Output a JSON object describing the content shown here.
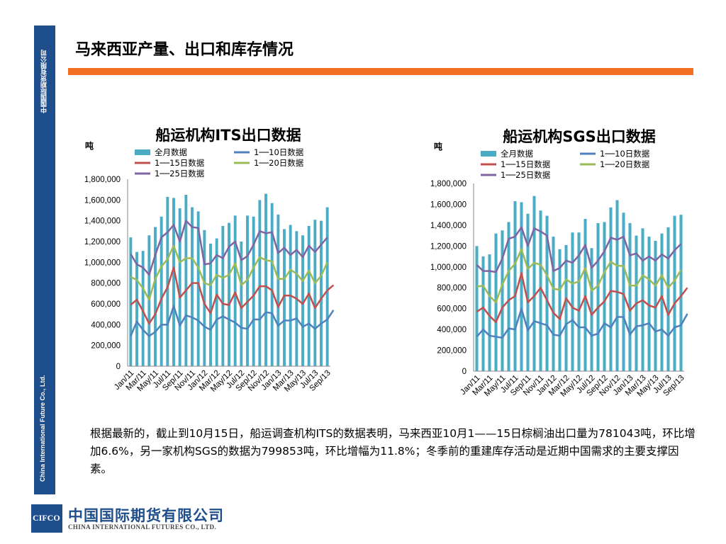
{
  "page": {
    "title": "马来西亚产量、出口和库存情况",
    "sidebar_top": "中国国际期货有限公司",
    "sidebar_bottom": "China International Future Co., Ltd.",
    "paragraph": "根据最新的，截止到10月15日，船运调查机构ITS的数据表明，马来西亚10月1——15日棕榈油出口量为781043吨，环比增加6.6%，另一家机构SGS的数据为799853吨，环比增幅为11.8%；冬季前的重建库存活动是近期中国需求的主要支撑因素。",
    "footer_logo_text": "CIFCO",
    "footer_cn": "中国国际期货有限公司",
    "footer_en": "CHINA INTERNATIONAL FUTURES CO., LTD."
  },
  "colors": {
    "bar": "#4bacc6",
    "s10": "#4f81bd",
    "s15": "#c0504d",
    "s20": "#9bbb59",
    "s25": "#8064a2",
    "sidebar": "#1f4e8c",
    "rule": "#f26f21"
  },
  "chart_data": [
    {
      "type": "bar",
      "title": "船运机构ITS出口数据",
      "ylabel": "吨",
      "ylim": [
        0,
        1800000
      ],
      "yticks": [
        "0",
        "200,000",
        "400,000",
        "600,000",
        "800,000",
        "1,000,000",
        "1,200,000",
        "1,400,000",
        "1,600,000",
        "1,800,000"
      ],
      "xtick_labels": [
        "Jan/11",
        "Mar/11",
        "May/11",
        "Jul/11",
        "Sep/11",
        "Nov/11",
        "Jan/12",
        "Mar/12",
        "May/12",
        "Jul/12",
        "Sep/12",
        "Nov/12",
        "Jan/13",
        "Mar/13",
        "May/13",
        "Jul/13",
        "Sep/13"
      ],
      "legend": [
        "全月数据",
        "1──10日数据",
        "1──15日数据",
        "1──20日数据",
        "1──25日数据"
      ],
      "series": [
        {
          "name": "全月数据",
          "type": "bar",
          "values": [
            1240000,
            1100000,
            1110000,
            1260000,
            1340000,
            1440000,
            1630000,
            1620000,
            1520000,
            1650000,
            1530000,
            1490000,
            1310000,
            1180000,
            1230000,
            1350000,
            1380000,
            1450000,
            1200000,
            1450000,
            1440000,
            1600000,
            1660000,
            1570000,
            1460000,
            1320000,
            1360000,
            1300000,
            1260000,
            1350000,
            1410000,
            1400000,
            1530000
          ]
        },
        {
          "name": "1──10日数据",
          "type": "line",
          "values": [
            290000,
            430000,
            350000,
            290000,
            330000,
            400000,
            400000,
            580000,
            390000,
            490000,
            470000,
            440000,
            380000,
            350000,
            450000,
            480000,
            450000,
            420000,
            370000,
            360000,
            450000,
            450000,
            520000,
            510000,
            390000,
            440000,
            440000,
            460000,
            380000,
            410000,
            360000,
            410000,
            450000,
            540000
          ]
        },
        {
          "name": "1──15日数据",
          "type": "line",
          "values": [
            590000,
            640000,
            530000,
            410000,
            500000,
            650000,
            760000,
            950000,
            660000,
            730000,
            800000,
            800000,
            600000,
            510000,
            690000,
            600000,
            590000,
            710000,
            560000,
            620000,
            680000,
            770000,
            770000,
            730000,
            570000,
            680000,
            680000,
            650000,
            600000,
            700000,
            560000,
            650000,
            730000,
            780000
          ]
        },
        {
          "name": "1──20日数据",
          "type": "line",
          "values": [
            860000,
            830000,
            750000,
            640000,
            840000,
            960000,
            1030000,
            1160000,
            1000000,
            1040000,
            1040000,
            950000,
            800000,
            780000,
            880000,
            850000,
            880000,
            990000,
            780000,
            830000,
            950000,
            1050000,
            1020000,
            1010000,
            840000,
            840000,
            930000,
            890000,
            820000,
            920000,
            800000,
            870000,
            1000000
          ]
        },
        {
          "name": "1──25日数据",
          "type": "line",
          "values": [
            1080000,
            980000,
            950000,
            880000,
            1070000,
            1240000,
            1290000,
            1360000,
            1200000,
            1400000,
            1340000,
            1330000,
            980000,
            990000,
            1070000,
            1040000,
            1150000,
            1200000,
            1020000,
            1060000,
            1170000,
            1300000,
            1280000,
            1290000,
            1090000,
            1140000,
            1070000,
            1120000,
            1050000,
            1160000,
            1100000,
            1170000,
            1240000
          ]
        }
      ]
    },
    {
      "type": "bar",
      "title": "船运机构SGS出口数据",
      "ylabel": "吨",
      "ylim": [
        0,
        1800000
      ],
      "yticks": [
        "0",
        "200,000",
        "400,000",
        "600,000",
        "800,000",
        "1,000,000",
        "1,200,000",
        "1,400,000",
        "1,600,000",
        "1,800,000"
      ],
      "xtick_labels": [
        "Jan/11",
        "Mar/11",
        "May/11",
        "Jul/11",
        "Sep/11",
        "Nov/11",
        "Jan/12",
        "Mar/12",
        "May/12",
        "Jul/12",
        "Sep/12",
        "Nov/12",
        "Jan/13",
        "Mar/13",
        "May/13",
        "Jul/13",
        "Sep/13"
      ],
      "legend": [
        "全月数据",
        "1──10日数据",
        "1──15日数据",
        "1──20日数据",
        "1──25日数据"
      ],
      "series": [
        {
          "name": "全月数据",
          "type": "bar",
          "values": [
            1200000,
            1100000,
            1120000,
            1320000,
            1350000,
            1430000,
            1630000,
            1620000,
            1510000,
            1680000,
            1540000,
            1490000,
            1290000,
            1170000,
            1210000,
            1330000,
            1330000,
            1460000,
            1180000,
            1420000,
            1430000,
            1570000,
            1640000,
            1520000,
            1420000,
            1300000,
            1370000,
            1290000,
            1250000,
            1320000,
            1380000,
            1490000,
            1500000
          ]
        },
        {
          "name": "1──10日数据",
          "type": "line",
          "values": [
            330000,
            400000,
            340000,
            330000,
            320000,
            410000,
            400000,
            600000,
            390000,
            480000,
            460000,
            440000,
            350000,
            340000,
            450000,
            490000,
            420000,
            420000,
            340000,
            360000,
            460000,
            420000,
            520000,
            520000,
            350000,
            430000,
            440000,
            460000,
            380000,
            400000,
            340000,
            420000,
            440000,
            550000
          ]
        },
        {
          "name": "1──15日数据",
          "type": "line",
          "values": [
            570000,
            610000,
            530000,
            470000,
            610000,
            680000,
            720000,
            940000,
            660000,
            720000,
            800000,
            680000,
            560000,
            500000,
            700000,
            610000,
            580000,
            720000,
            540000,
            610000,
            670000,
            770000,
            760000,
            740000,
            580000,
            650000,
            680000,
            630000,
            610000,
            720000,
            540000,
            650000,
            720000,
            800000
          ]
        },
        {
          "name": "1──20日数据",
          "type": "line",
          "values": [
            810000,
            820000,
            720000,
            660000,
            830000,
            960000,
            1030000,
            1170000,
            980000,
            1040000,
            1020000,
            920000,
            790000,
            780000,
            880000,
            840000,
            860000,
            990000,
            770000,
            820000,
            950000,
            1050000,
            1010000,
            1010000,
            820000,
            820000,
            920000,
            880000,
            820000,
            920000,
            800000,
            870000,
            970000
          ]
        },
        {
          "name": "1──25日数据",
          "type": "line",
          "values": [
            1020000,
            960000,
            960000,
            950000,
            1080000,
            1270000,
            1290000,
            1380000,
            1200000,
            1370000,
            1340000,
            1300000,
            960000,
            990000,
            1060000,
            1040000,
            1110000,
            1210000,
            990000,
            1060000,
            1150000,
            1280000,
            1260000,
            1290000,
            1110000,
            1130000,
            1060000,
            1100000,
            1060000,
            1120000,
            1080000,
            1160000,
            1220000
          ]
        }
      ]
    }
  ]
}
